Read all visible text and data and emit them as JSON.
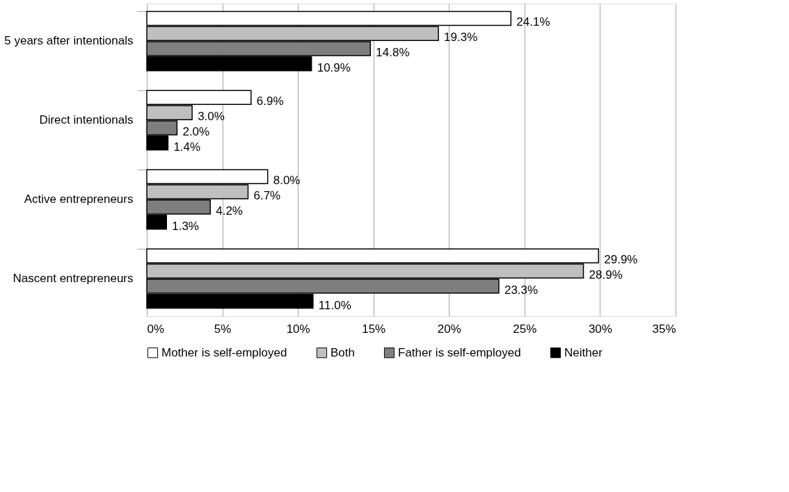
{
  "chart_data": {
    "type": "bar",
    "orientation": "horizontal",
    "categories": [
      "5 years after intentionals",
      "Direct intentionals",
      "Active entrepreneurs",
      "Nascent entrepreneurs"
    ],
    "series": [
      {
        "name": "Mother is self-employed",
        "color": "#ffffff",
        "values": [
          24.1,
          6.9,
          8.0,
          29.9
        ],
        "value_labels": [
          "24.1%",
          "6.9%",
          "8.0%",
          "29.9%"
        ]
      },
      {
        "name": "Both",
        "color": "#bfbfbf",
        "values": [
          19.3,
          3.0,
          6.7,
          28.9
        ],
        "value_labels": [
          "19.3%",
          "3.0%",
          "6.7%",
          "28.9%"
        ]
      },
      {
        "name": "Father is self-employed",
        "color": "#7f7f7f",
        "values": [
          14.8,
          2.0,
          4.2,
          23.3
        ],
        "value_labels": [
          "14.8%",
          "2.0%",
          "4.2%",
          "23.3%"
        ]
      },
      {
        "name": "Neither",
        "color": "#000000",
        "values": [
          10.9,
          1.4,
          1.3,
          11.0
        ],
        "value_labels": [
          "10.9%",
          "1.4%",
          "1.3%",
          "11.0%"
        ]
      }
    ],
    "xlim": [
      0,
      35
    ],
    "xticks": [
      {
        "value": 0,
        "label": "0%"
      },
      {
        "value": 5,
        "label": "5%"
      },
      {
        "value": 10,
        "label": "10%"
      },
      {
        "value": 15,
        "label": "15%"
      },
      {
        "value": 20,
        "label": "20%"
      },
      {
        "value": 25,
        "label": "25%"
      },
      {
        "value": 30,
        "label": "30%"
      },
      {
        "value": 35,
        "label": "35%"
      }
    ],
    "grid": "x",
    "legend": "bottom"
  }
}
